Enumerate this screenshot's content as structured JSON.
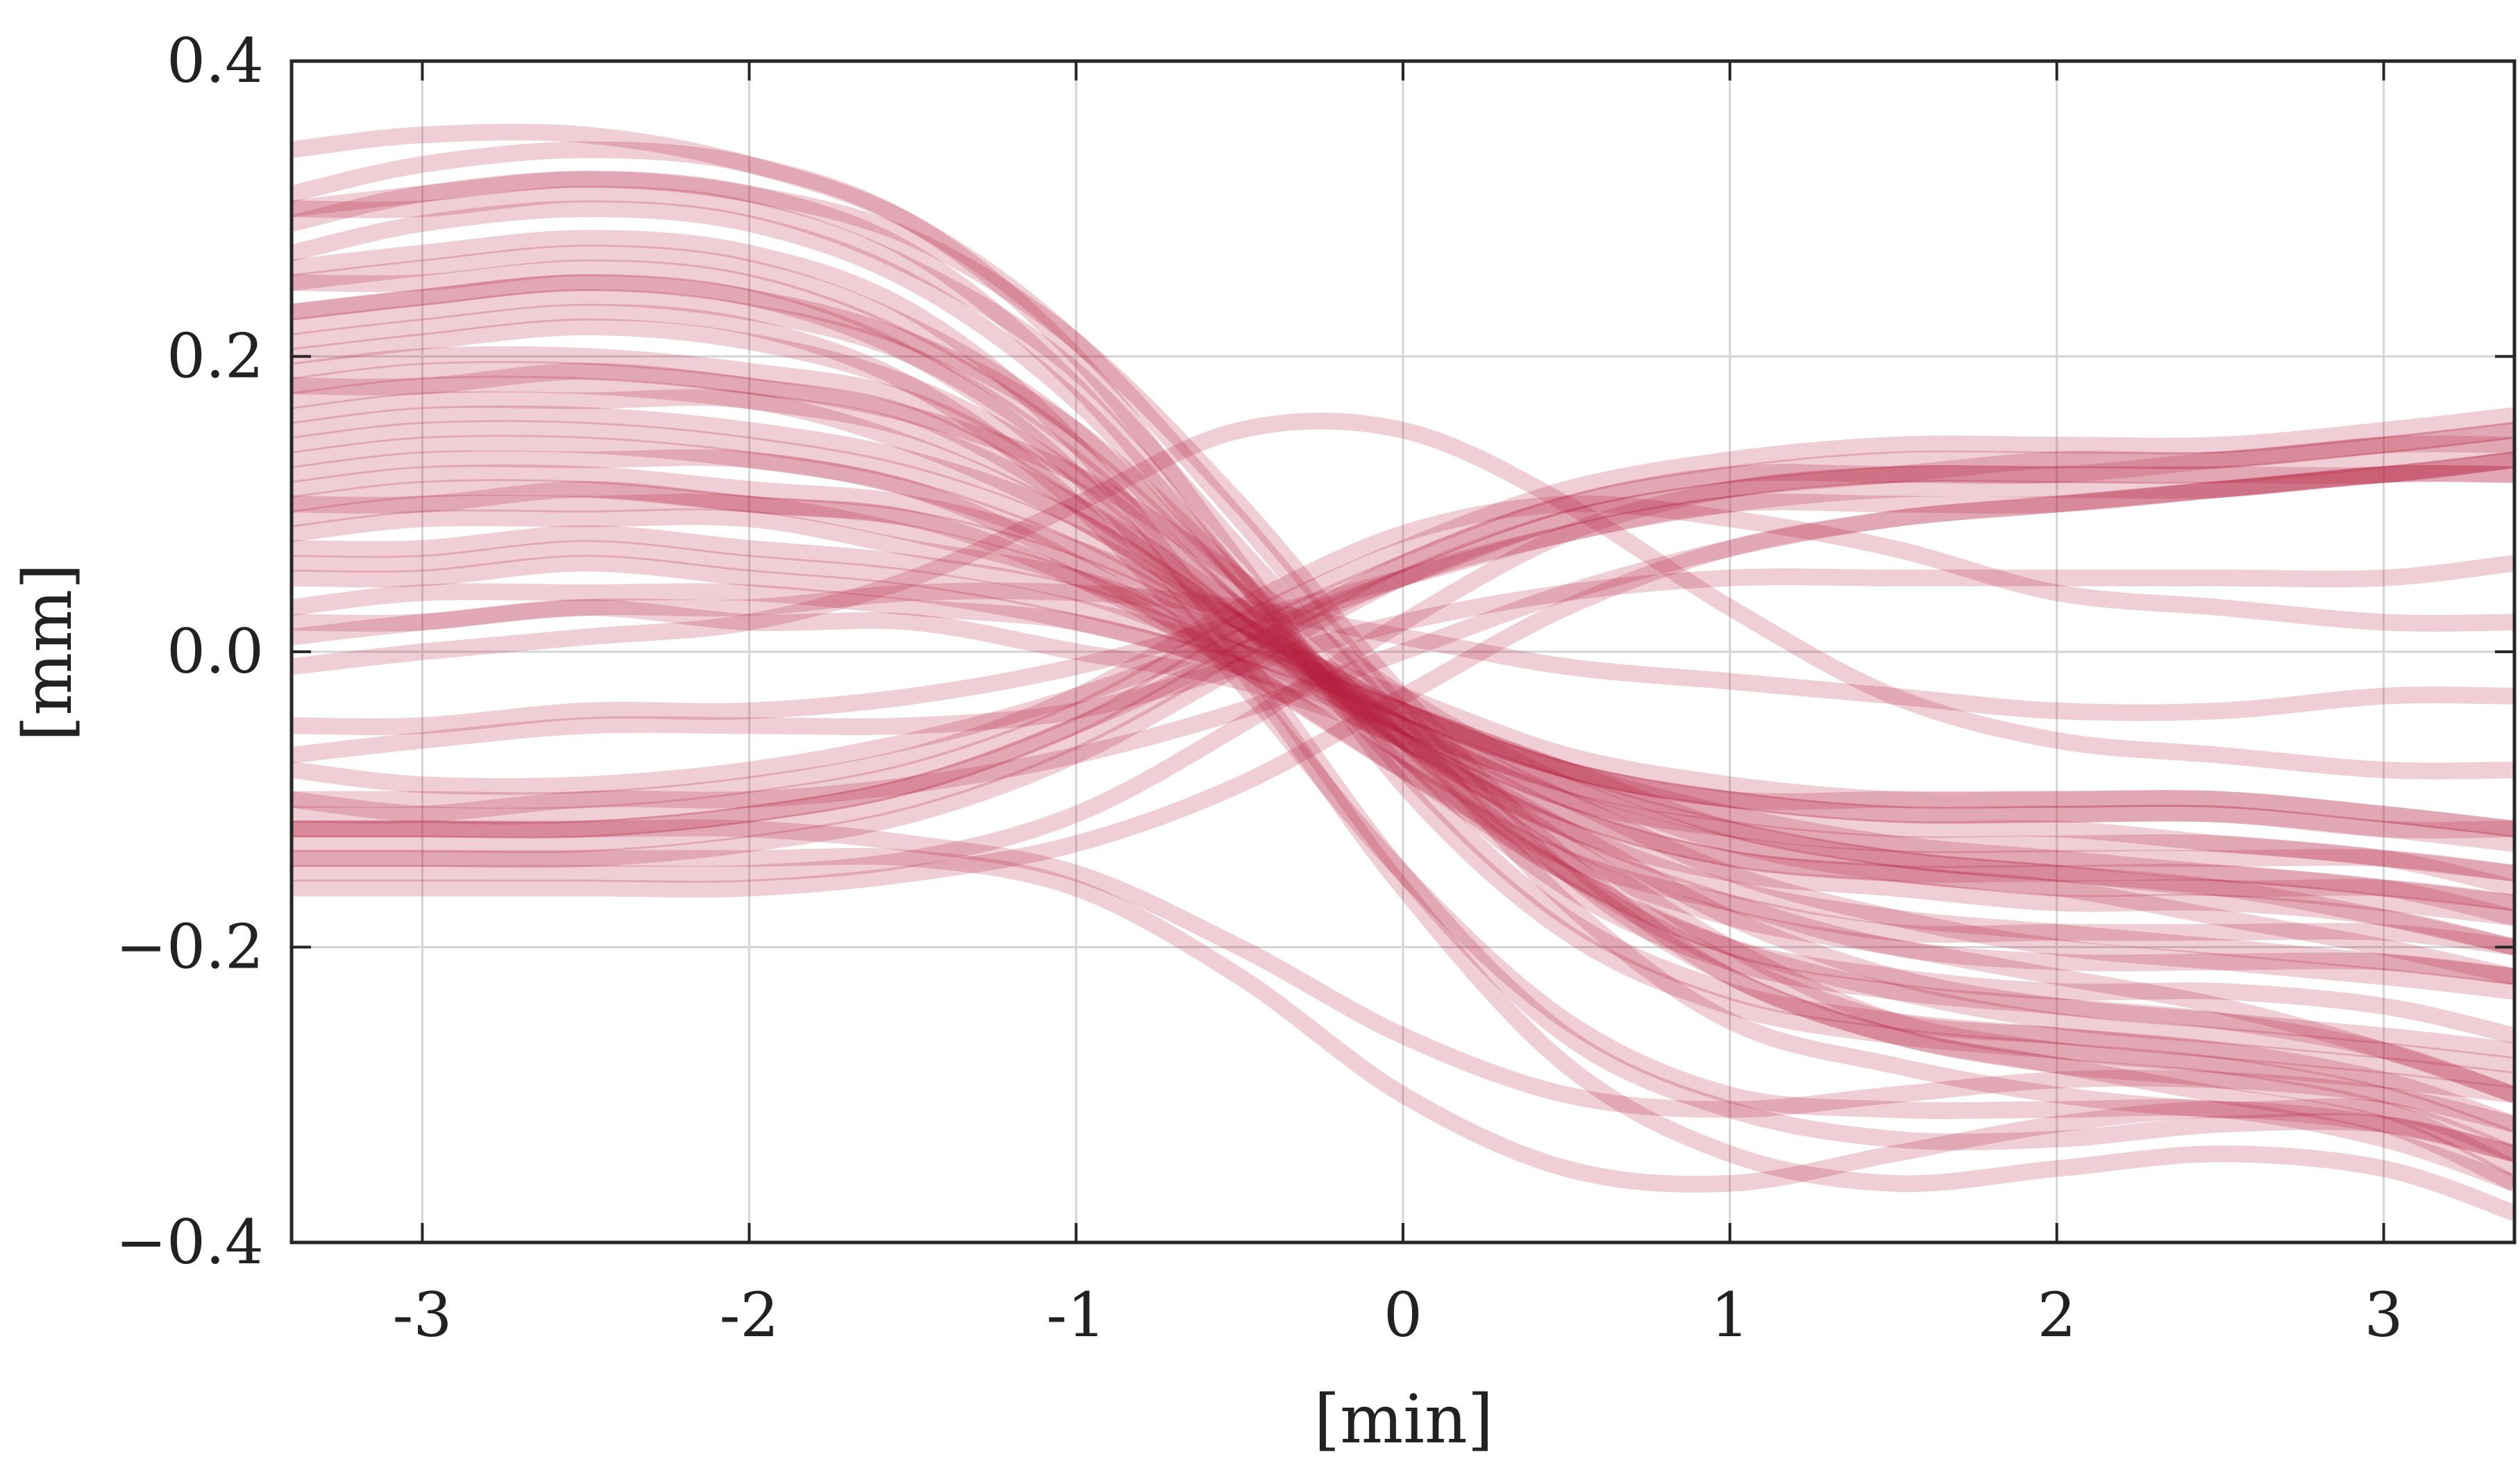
{
  "chart_data": {
    "type": "line",
    "title": "",
    "xlabel": "[min]",
    "ylabel": "[mm]",
    "xlim": [
      -3.4,
      3.4
    ],
    "ylim": [
      -0.4,
      0.4
    ],
    "grid": true,
    "legend": "none",
    "line_color": "#b5203f",
    "x_ticks": [
      {
        "value": -3,
        "label": "-3"
      },
      {
        "value": -2,
        "label": "-2"
      },
      {
        "value": -1,
        "label": "-1"
      },
      {
        "value": 0,
        "label": "0"
      },
      {
        "value": 1,
        "label": "1"
      },
      {
        "value": 2,
        "label": "2"
      },
      {
        "value": 3,
        "label": "3"
      }
    ],
    "y_ticks": [
      {
        "value": -0.4,
        "label": "−0.4"
      },
      {
        "value": -0.2,
        "label": "−0.2"
      },
      {
        "value": 0.0,
        "label": "0.0"
      },
      {
        "value": 0.2,
        "label": "0.2"
      },
      {
        "value": 0.4,
        "label": "0.4"
      }
    ],
    "x": [
      -3.4,
      -3.0,
      -2.5,
      -2.0,
      -1.5,
      -1.0,
      -0.5,
      0.0,
      0.5,
      1.0,
      1.5,
      2.0,
      2.5,
      3.0,
      3.4
    ],
    "series": [
      {
        "values": [
          0.31,
          0.33,
          0.34,
          0.33,
          0.29,
          0.2,
          0.06,
          -0.09,
          -0.19,
          -0.24,
          -0.26,
          -0.27,
          -0.28,
          -0.3,
          -0.33
        ]
      },
      {
        "values": [
          0.29,
          0.31,
          0.32,
          0.31,
          0.27,
          0.18,
          0.05,
          -0.08,
          -0.18,
          -0.23,
          -0.25,
          -0.26,
          -0.27,
          -0.29,
          -0.32
        ]
      },
      {
        "values": [
          0.27,
          0.29,
          0.3,
          0.29,
          0.25,
          0.17,
          0.05,
          -0.07,
          -0.16,
          -0.21,
          -0.23,
          -0.24,
          -0.25,
          -0.27,
          -0.3
        ]
      },
      {
        "values": [
          0.3,
          0.3,
          0.31,
          0.3,
          0.26,
          0.19,
          0.07,
          -0.05,
          -0.17,
          -0.25,
          -0.28,
          -0.3,
          -0.31,
          -0.31,
          -0.34
        ]
      },
      {
        "values": [
          0.25,
          0.26,
          0.27,
          0.26,
          0.22,
          0.15,
          0.04,
          -0.07,
          -0.15,
          -0.2,
          -0.22,
          -0.23,
          -0.23,
          -0.24,
          -0.26
        ]
      },
      {
        "values": [
          0.25,
          0.25,
          0.26,
          0.25,
          0.21,
          0.14,
          0.04,
          -0.06,
          -0.14,
          -0.18,
          -0.2,
          -0.22,
          -0.24,
          -0.27,
          -0.3
        ]
      },
      {
        "values": [
          0.23,
          0.24,
          0.25,
          0.24,
          0.21,
          0.15,
          0.05,
          -0.06,
          -0.15,
          -0.21,
          -0.25,
          -0.26,
          -0.27,
          -0.28,
          -0.29
        ]
      },
      {
        "values": [
          0.22,
          0.23,
          0.24,
          0.23,
          0.2,
          0.13,
          0.03,
          -0.06,
          -0.12,
          -0.16,
          -0.18,
          -0.19,
          -0.2,
          -0.21,
          -0.22
        ]
      },
      {
        "values": [
          0.2,
          0.21,
          0.22,
          0.21,
          0.18,
          0.12,
          0.03,
          -0.06,
          -0.12,
          -0.15,
          -0.16,
          -0.17,
          -0.17,
          -0.18,
          -0.2
        ]
      },
      {
        "values": [
          0.19,
          0.2,
          0.2,
          0.19,
          0.17,
          0.11,
          0.02,
          -0.06,
          -0.11,
          -0.14,
          -0.15,
          -0.16,
          -0.16,
          -0.17,
          -0.18
        ]
      },
      {
        "values": [
          0.18,
          0.18,
          0.19,
          0.18,
          0.16,
          0.1,
          0.02,
          -0.07,
          -0.13,
          -0.17,
          -0.2,
          -0.21,
          -0.21,
          -0.21,
          -0.22
        ]
      },
      {
        "values": [
          0.17,
          0.18,
          0.18,
          0.17,
          0.15,
          0.1,
          0.03,
          -0.05,
          -0.11,
          -0.14,
          -0.15,
          -0.15,
          -0.15,
          -0.16,
          -0.17
        ]
      },
      {
        "values": [
          0.16,
          0.17,
          0.17,
          0.17,
          0.14,
          0.09,
          0.02,
          -0.05,
          -0.1,
          -0.12,
          -0.13,
          -0.13,
          -0.13,
          -0.14,
          -0.15
        ]
      },
      {
        "values": [
          0.15,
          0.16,
          0.16,
          0.15,
          0.13,
          0.09,
          0.02,
          -0.05,
          -0.1,
          -0.13,
          -0.14,
          -0.14,
          -0.14,
          -0.14,
          -0.15
        ]
      },
      {
        "values": [
          0.14,
          0.15,
          0.15,
          0.14,
          0.12,
          0.08,
          0.02,
          -0.04,
          -0.08,
          -0.1,
          -0.11,
          -0.11,
          -0.11,
          -0.12,
          -0.12
        ]
      },
      {
        "values": [
          0.12,
          0.13,
          0.13,
          0.13,
          0.11,
          0.07,
          0.01,
          -0.05,
          -0.09,
          -0.12,
          -0.14,
          -0.15,
          -0.16,
          -0.18,
          -0.2
        ]
      },
      {
        "values": [
          0.11,
          0.12,
          0.12,
          0.11,
          0.1,
          0.07,
          0.02,
          -0.04,
          -0.08,
          -0.1,
          -0.11,
          -0.11,
          -0.11,
          -0.12,
          -0.13
        ]
      },
      {
        "values": [
          0.1,
          0.1,
          0.11,
          0.1,
          0.09,
          0.06,
          0.01,
          -0.04,
          -0.08,
          -0.1,
          -0.1,
          -0.1,
          -0.1,
          -0.11,
          -0.12
        ]
      },
      {
        "values": [
          0.09,
          0.1,
          0.1,
          0.1,
          0.08,
          0.05,
          0.0,
          -0.05,
          -0.09,
          -0.11,
          -0.12,
          -0.12,
          -0.13,
          -0.14,
          -0.16
        ]
      },
      {
        "values": [
          0.08,
          0.09,
          0.09,
          0.09,
          0.07,
          0.05,
          0.01,
          -0.03,
          -0.07,
          -0.09,
          -0.1,
          -0.1,
          -0.1,
          -0.11,
          -0.12
        ]
      },
      {
        "values": [
          0.07,
          0.07,
          0.08,
          0.07,
          0.06,
          0.04,
          0.0,
          -0.04,
          -0.08,
          -0.12,
          -0.14,
          -0.15,
          -0.16,
          -0.16,
          -0.17
        ]
      },
      {
        "values": [
          0.06,
          0.06,
          0.07,
          0.06,
          0.05,
          0.03,
          0.0,
          -0.04,
          -0.08,
          -0.11,
          -0.13,
          -0.14,
          -0.15,
          -0.16,
          -0.18
        ]
      },
      {
        "values": [
          0.05,
          0.05,
          0.06,
          0.05,
          0.04,
          0.02,
          -0.01,
          -0.06,
          -0.12,
          -0.18,
          -0.22,
          -0.24,
          -0.25,
          -0.26,
          -0.27
        ]
      },
      {
        "values": [
          0.03,
          0.04,
          0.04,
          0.04,
          0.03,
          0.02,
          -0.01,
          -0.05,
          -0.1,
          -0.15,
          -0.18,
          -0.2,
          -0.21,
          -0.22,
          -0.23
        ]
      },
      {
        "values": [
          0.02,
          0.02,
          0.03,
          0.02,
          0.02,
          0.0,
          -0.02,
          -0.06,
          -0.13,
          -0.2,
          -0.25,
          -0.27,
          -0.28,
          -0.29,
          -0.3
        ]
      },
      {
        "values": [
          0.26,
          0.27,
          0.28,
          0.27,
          0.23,
          0.14,
          0.0,
          -0.15,
          -0.26,
          -0.31,
          -0.33,
          -0.33,
          -0.32,
          -0.32,
          -0.34
        ]
      },
      {
        "values": [
          0.23,
          0.24,
          0.25,
          0.24,
          0.2,
          0.12,
          -0.01,
          -0.16,
          -0.28,
          -0.34,
          -0.36,
          -0.35,
          -0.34,
          -0.35,
          -0.38
        ]
      },
      {
        "values": [
          0.21,
          0.22,
          0.23,
          0.22,
          0.18,
          0.1,
          -0.02,
          -0.15,
          -0.25,
          -0.3,
          -0.31,
          -0.31,
          -0.31,
          -0.33,
          -0.36
        ]
      },
      {
        "values": [
          0.3,
          0.31,
          0.32,
          0.31,
          0.28,
          0.21,
          0.1,
          -0.03,
          -0.14,
          -0.22,
          -0.26,
          -0.28,
          -0.29,
          -0.31,
          -0.35
        ]
      },
      {
        "values": [
          0.34,
          0.35,
          0.35,
          0.33,
          0.29,
          0.21,
          0.09,
          -0.04,
          -0.15,
          -0.22,
          -0.26,
          -0.28,
          -0.3,
          -0.32,
          -0.36
        ]
      },
      {
        "values": [
          0.13,
          0.14,
          0.14,
          0.13,
          0.11,
          0.06,
          -0.01,
          -0.08,
          -0.14,
          -0.17,
          -0.19,
          -0.19,
          -0.19,
          -0.19,
          -0.2
        ]
      },
      {
        "values": [
          0.1,
          0.11,
          0.11,
          0.1,
          0.09,
          0.05,
          -0.01,
          -0.08,
          -0.15,
          -0.2,
          -0.23,
          -0.25,
          -0.26,
          -0.27,
          -0.28
        ]
      },
      {
        "values": [
          0.18,
          0.19,
          0.19,
          0.18,
          0.16,
          0.12,
          0.05,
          -0.03,
          -0.09,
          -0.13,
          -0.15,
          -0.16,
          -0.18,
          -0.2,
          -0.22
        ]
      },
      {
        "values": [
          -0.08,
          -0.09,
          -0.09,
          -0.08,
          -0.06,
          -0.03,
          0.01,
          0.05,
          0.09,
          0.11,
          0.12,
          0.13,
          0.13,
          0.14,
          0.15
        ]
      },
      {
        "values": [
          -0.1,
          -0.11,
          -0.11,
          -0.1,
          -0.08,
          -0.04,
          0.02,
          0.07,
          0.11,
          0.13,
          0.14,
          0.14,
          0.14,
          0.15,
          0.16
        ]
      },
      {
        "values": [
          -0.12,
          -0.12,
          -0.12,
          -0.11,
          -0.09,
          -0.05,
          0.01,
          0.06,
          0.1,
          0.12,
          0.13,
          0.13,
          0.13,
          0.14,
          0.14
        ]
      },
      {
        "values": [
          -0.14,
          -0.14,
          -0.14,
          -0.13,
          -0.11,
          -0.07,
          -0.01,
          0.05,
          0.09,
          0.11,
          0.12,
          0.12,
          0.12,
          0.12,
          0.13
        ]
      },
      {
        "values": [
          -0.15,
          -0.15,
          -0.15,
          -0.15,
          -0.14,
          -0.11,
          -0.05,
          0.02,
          0.08,
          0.11,
          0.12,
          0.12,
          0.12,
          0.13,
          0.14
        ]
      },
      {
        "values": [
          -0.07,
          -0.06,
          -0.05,
          -0.05,
          -0.05,
          -0.04,
          -0.01,
          0.02,
          0.04,
          0.05,
          0.05,
          0.05,
          0.05,
          0.05,
          0.06
        ]
      },
      {
        "values": [
          -0.11,
          -0.11,
          -0.1,
          -0.1,
          -0.09,
          -0.07,
          -0.04,
          0.0,
          0.04,
          0.07,
          0.09,
          0.1,
          0.11,
          0.12,
          0.13
        ]
      },
      {
        "values": [
          -0.13,
          -0.13,
          -0.13,
          -0.12,
          -0.1,
          -0.06,
          0.0,
          0.06,
          0.1,
          0.12,
          0.12,
          0.12,
          0.13,
          0.14,
          0.15
        ]
      },
      {
        "values": [
          -0.16,
          -0.16,
          -0.16,
          -0.16,
          -0.15,
          -0.13,
          -0.09,
          -0.03,
          0.03,
          0.07,
          0.09,
          0.1,
          0.11,
          0.12,
          0.13
        ]
      },
      {
        "values": [
          -0.01,
          0.0,
          0.01,
          0.02,
          0.05,
          0.1,
          0.15,
          0.15,
          0.1,
          0.03,
          -0.03,
          -0.06,
          -0.07,
          -0.08,
          -0.08
        ]
      },
      {
        "values": [
          -0.1,
          -0.1,
          -0.1,
          -0.09,
          -0.07,
          -0.03,
          0.03,
          0.08,
          0.1,
          0.09,
          0.07,
          0.04,
          0.03,
          0.02,
          0.02
        ]
      },
      {
        "values": [
          -0.12,
          -0.12,
          -0.12,
          -0.11,
          -0.09,
          -0.05,
          0.0,
          0.05,
          0.08,
          0.1,
          0.1,
          0.1,
          0.11,
          0.12,
          0.12
        ]
      },
      {
        "values": [
          -0.05,
          -0.05,
          -0.04,
          -0.04,
          -0.03,
          -0.01,
          0.02,
          0.05,
          0.08,
          0.1,
          0.11,
          0.11,
          0.11,
          0.12,
          0.12
        ]
      },
      {
        "values": [
          0.01,
          0.02,
          0.03,
          0.03,
          0.04,
          0.04,
          0.03,
          0.01,
          -0.01,
          -0.02,
          -0.03,
          -0.04,
          -0.04,
          -0.03,
          -0.03
        ]
      },
      {
        "values": [
          -0.14,
          -0.14,
          -0.14,
          -0.14,
          -0.14,
          -0.16,
          -0.22,
          -0.3,
          -0.35,
          -0.36,
          -0.34,
          -0.32,
          -0.31,
          -0.32,
          -0.34
        ]
      },
      {
        "values": [
          -0.12,
          -0.12,
          -0.12,
          -0.12,
          -0.13,
          -0.15,
          -0.2,
          -0.26,
          -0.3,
          -0.31,
          -0.3,
          -0.29,
          -0.29,
          -0.3,
          -0.32
        ]
      }
    ]
  }
}
